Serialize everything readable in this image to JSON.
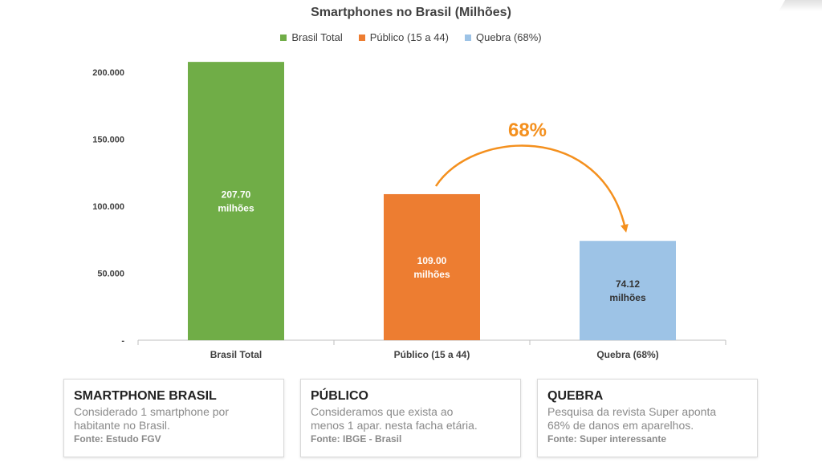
{
  "chart_data": {
    "type": "bar",
    "title": "Smartphones no Brasil (Milhões)",
    "categories": [
      "Brasil Total",
      "Público (15 a 44)",
      "Quebra (68%)"
    ],
    "values": [
      207.7,
      109.0,
      74.12
    ],
    "data_labels": [
      [
        "207.70",
        "milhões"
      ],
      [
        "109.00",
        "milhões"
      ],
      [
        "74.12",
        "milhões"
      ]
    ],
    "colors": [
      "#70ad47",
      "#ed7d31",
      "#9dc3e6"
    ],
    "legend": [
      "Brasil Total",
      "Público (15 a 44)",
      "Quebra (68%)"
    ],
    "legend_position": "top",
    "ylim": [
      0,
      200
    ],
    "yticks": [
      0,
      50,
      100,
      150,
      200
    ],
    "ytick_labels": [
      "-",
      "50.000",
      "100.000",
      "150.000",
      "200.000"
    ],
    "grid": false,
    "annotation": {
      "text": "68%",
      "color": "#f4901e",
      "from_category": "Público (15 a 44)",
      "to_category": "Quebra (68%)"
    }
  },
  "cards": [
    {
      "title": "SMARTPHONE BRASIL",
      "lines": [
        "Considerado 1 smartphone por",
        "habitante no Brasil."
      ],
      "source": "Fonte: Estudo FGV"
    },
    {
      "title": "PÚBLICO",
      "lines": [
        "Consideramos que exista ao",
        "menos 1 apar. nesta facha etária."
      ],
      "source": "Fonte: IBGE - Brasil"
    },
    {
      "title": "QUEBRA",
      "lines": [
        "Pesquisa da revista Super aponta",
        "68% de danos em aparelhos."
      ],
      "source": "Fonte: Super interessante"
    }
  ]
}
